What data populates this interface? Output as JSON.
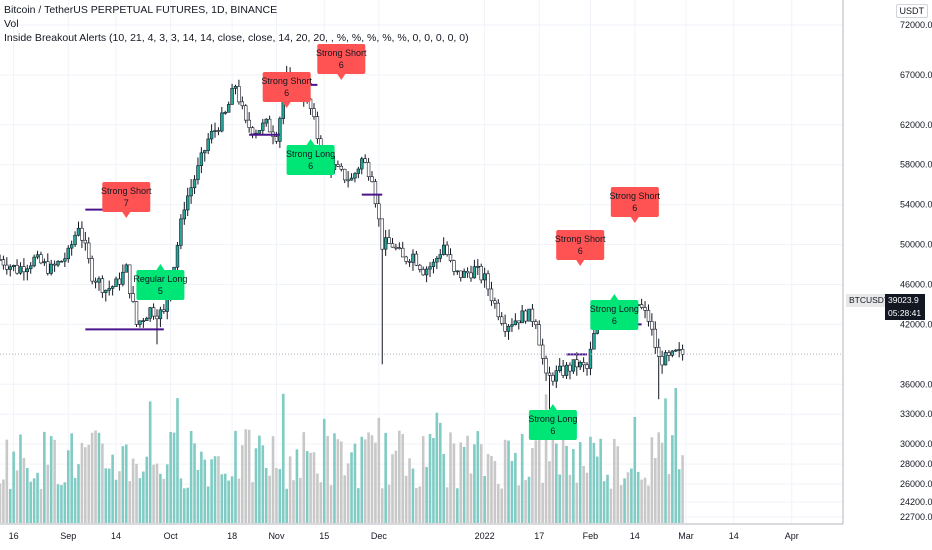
{
  "header": {
    "title": "Bitcoin / TetherUS PERPETUAL FUTURES, 1D, BINANCE",
    "volume_label": "Vol",
    "indicator": "Inside Breakout Alerts (10, 21, 4, 3, 3, 14, 14, close, close, 14, 20, 20, , %, %, %, %, %, 0, 0, 0, 0, 0)"
  },
  "currency": "USDT",
  "last_price": {
    "symbol": "BTCUSDTPERP",
    "value": "39023.9",
    "countdown": "05:28:41"
  },
  "colors": {
    "up": "#26a69a",
    "down": "#ef5350",
    "long": "#00e676",
    "short": "#ff5252",
    "breakout_line": "#4a148c",
    "candle": "#131722"
  },
  "chart_data": {
    "type": "candlestick",
    "price_axis": {
      "range": [
        22000,
        74500
      ],
      "ticks": [
        "72000.0",
        "67000.0",
        "62000.0",
        "58000.0",
        "54000.0",
        "50000.0",
        "46000.0",
        "42000.0",
        "36000.0",
        "33000.0",
        "30000.0",
        "28000.0",
        "26000.0",
        "24200.0",
        "22700.0"
      ],
      "tick_values": [
        72000,
        67000,
        62000,
        58000,
        54000,
        50000,
        46000,
        42000,
        36000,
        33000,
        30000,
        28000,
        26000,
        24200,
        22700
      ]
    },
    "time_axis": {
      "ticks": [
        "16",
        "Sep",
        "14",
        "Oct",
        "18",
        "Nov",
        "15",
        "Dec",
        "2022",
        "17",
        "Feb",
        "14",
        "Mar",
        "14",
        "Apr"
      ],
      "tick_days": [
        -16,
        0,
        14,
        30,
        48,
        61,
        75,
        91,
        122,
        138,
        153,
        166,
        181,
        195,
        212
      ]
    },
    "x_range_days": [
      -20,
      227
    ],
    "close_anchors": [
      [
        -20,
        48500
      ],
      [
        -15,
        47500
      ],
      [
        -10,
        48500
      ],
      [
        -5,
        47500
      ],
      [
        0,
        49000
      ],
      [
        3,
        52000
      ],
      [
        7,
        47000
      ],
      [
        11,
        45500
      ],
      [
        14,
        46000
      ],
      [
        17,
        47500
      ],
      [
        20,
        42000
      ],
      [
        24,
        43500
      ],
      [
        28,
        43000
      ],
      [
        31,
        48000
      ],
      [
        34,
        54000
      ],
      [
        38,
        57500
      ],
      [
        41,
        60500
      ],
      [
        44,
        62000
      ],
      [
        46,
        63000
      ],
      [
        49,
        66000
      ],
      [
        52,
        62000
      ],
      [
        55,
        61500
      ],
      [
        58,
        62000
      ],
      [
        61,
        61000
      ],
      [
        64,
        66500
      ],
      [
        68,
        65500
      ],
      [
        71,
        63500
      ],
      [
        74,
        59500
      ],
      [
        77,
        58000
      ],
      [
        80,
        57000
      ],
      [
        83,
        56500
      ],
      [
        86,
        58500
      ],
      [
        89,
        57000
      ],
      [
        92,
        50000
      ],
      [
        95,
        50000
      ],
      [
        98,
        48500
      ],
      [
        101,
        49000
      ],
      [
        104,
        47500
      ],
      [
        107,
        48000
      ],
      [
        110,
        50000
      ],
      [
        113,
        47000
      ],
      [
        116,
        47000
      ],
      [
        119,
        47500
      ],
      [
        122,
        46500
      ],
      [
        125,
        44000
      ],
      [
        128,
        42000
      ],
      [
        131,
        42500
      ],
      [
        134,
        43000
      ],
      [
        137,
        42500
      ],
      [
        140,
        36500
      ],
      [
        143,
        37000
      ],
      [
        146,
        37500
      ],
      [
        149,
        38000
      ],
      [
        152,
        37500
      ],
      [
        155,
        42500
      ],
      [
        158,
        44500
      ],
      [
        161,
        43500
      ],
      [
        164,
        42000
      ],
      [
        167,
        44000
      ],
      [
        170,
        42500
      ],
      [
        173,
        38500
      ],
      [
        176,
        38500
      ],
      [
        178,
        39000
      ],
      [
        180,
        39024
      ]
    ],
    "signals": [
      {
        "text": "Strong Short",
        "count": "7",
        "side": "short",
        "day": 17
      },
      {
        "text": "Regular Long",
        "count": "5",
        "side": "long",
        "day": 27
      },
      {
        "text": "Strong Short",
        "count": "6",
        "side": "short",
        "day": 64
      },
      {
        "text": "Strong Short",
        "count": "6",
        "side": "short",
        "day": 80
      },
      {
        "text": "Strong Long",
        "count": "6",
        "side": "long",
        "day": 71
      },
      {
        "text": "Strong Short",
        "count": "6",
        "side": "short",
        "day": 150
      },
      {
        "text": "Strong Short",
        "count": "6",
        "side": "short",
        "day": 166
      },
      {
        "text": "Strong Long",
        "count": "6",
        "side": "long",
        "day": 160
      },
      {
        "text": "Strong Long",
        "count": "6",
        "side": "long",
        "day": 142
      }
    ]
  }
}
